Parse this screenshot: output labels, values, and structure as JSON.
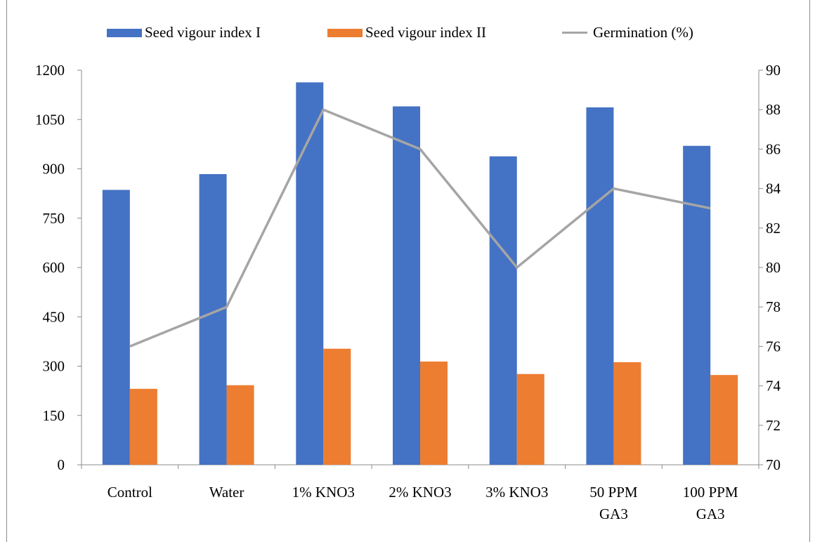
{
  "colors": {
    "series1": "#4472c4",
    "series2": "#ed7d31",
    "series3": "#a5a5a5",
    "axis": "#8c8c8c"
  },
  "legend": {
    "item1": "Seed vigour index I",
    "item2": "Seed vigour index II",
    "item3": "Germination (%)"
  },
  "chart_data": {
    "type": "bar",
    "combo": "clustered bar + line on secondary axis",
    "categories": [
      [
        "Control"
      ],
      [
        "Water"
      ],
      [
        "1% KNO3"
      ],
      [
        "2% KNO3"
      ],
      [
        "3% KNO3"
      ],
      [
        "50 PPM",
        "GA3"
      ],
      [
        "100 PPM",
        "GA3"
      ]
    ],
    "series": [
      {
        "name": "Seed vigour index I",
        "type": "bar",
        "axis": "primary",
        "color": "#4472c4",
        "values": [
          836,
          884,
          1163,
          1090,
          938,
          1087,
          970
        ]
      },
      {
        "name": "Seed vigour index II",
        "type": "bar",
        "axis": "primary",
        "color": "#ed7d31",
        "values": [
          231,
          242,
          353,
          314,
          276,
          312,
          273
        ]
      },
      {
        "name": "Germination (%)",
        "type": "line",
        "axis": "secondary",
        "color": "#a5a5a5",
        "values": [
          76,
          78,
          88,
          86,
          80,
          84,
          83
        ]
      }
    ],
    "ylim": [
      0,
      1200
    ],
    "yticks": [
      0,
      150,
      300,
      450,
      600,
      750,
      900,
      1050,
      1200
    ],
    "y2lim": [
      70,
      90
    ],
    "y2ticks": [
      70,
      72,
      74,
      76,
      78,
      80,
      82,
      84,
      86,
      88,
      90
    ],
    "grid": false,
    "legend_position": "top"
  }
}
